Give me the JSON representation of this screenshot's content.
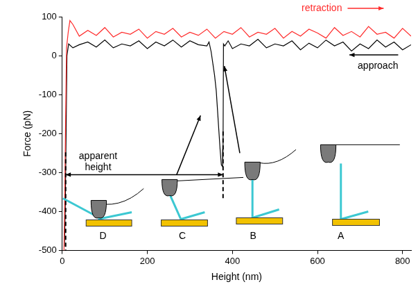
{
  "chart_data": {
    "type": "line",
    "x_label": "Height (nm)",
    "y_label": "Force (pN)",
    "xlim": [
      0,
      820
    ],
    "xticks": [
      0,
      200,
      400,
      600,
      800
    ],
    "ylim": [
      -500,
      100
    ],
    "yticks": [
      -500,
      -400,
      -300,
      -200,
      -100,
      0,
      100
    ],
    "grid": false,
    "series": [
      {
        "name": "retraction",
        "color": "#ff2a2a",
        "x": [
          820,
          800,
          780,
          760,
          740,
          720,
          700,
          680,
          660,
          640,
          620,
          600,
          580,
          560,
          540,
          520,
          500,
          480,
          460,
          440,
          420,
          400,
          380,
          360,
          340,
          320,
          300,
          280,
          260,
          240,
          220,
          200,
          180,
          160,
          140,
          120,
          100,
          80,
          60,
          40,
          25,
          18,
          14,
          10,
          8,
          6,
          4
        ],
        "values": [
          50,
          70,
          45,
          60,
          55,
          75,
          48,
          62,
          52,
          72,
          45,
          58,
          68,
          50,
          62,
          45,
          70,
          55,
          60,
          48,
          72,
          55,
          62,
          45,
          68,
          52,
          60,
          48,
          70,
          55,
          62,
          45,
          68,
          55,
          60,
          48,
          72,
          52,
          65,
          50,
          80,
          90,
          60,
          20,
          -150,
          -350,
          -500
        ]
      },
      {
        "name": "approach",
        "color": "#000000",
        "x": [
          820,
          800,
          780,
          760,
          740,
          720,
          700,
          680,
          660,
          640,
          620,
          600,
          580,
          560,
          540,
          520,
          500,
          480,
          460,
          440,
          420,
          400,
          390,
          382,
          379,
          378,
          377,
          374,
          371,
          368,
          365,
          362,
          358,
          354,
          350,
          345,
          340,
          320,
          300,
          280,
          260,
          240,
          220,
          200,
          180,
          160,
          140,
          120,
          100,
          80,
          60,
          40,
          25,
          15,
          11,
          9,
          7,
          5
        ],
        "values": [
          28,
          15,
          35,
          22,
          40,
          18,
          30,
          12,
          35,
          25,
          40,
          20,
          32,
          15,
          38,
          25,
          30,
          20,
          42,
          25,
          30,
          18,
          38,
          25,
          30,
          -240,
          -285,
          -280,
          -240,
          -190,
          -140,
          -90,
          -50,
          -20,
          10,
          35,
          25,
          28,
          38,
          22,
          40,
          25,
          35,
          18,
          38,
          25,
          30,
          20,
          40,
          22,
          35,
          28,
          20,
          30,
          0,
          -200,
          -400,
          -490
        ]
      }
    ],
    "annotations": [
      {
        "text": "apparent height",
        "from": 8,
        "to": 378
      }
    ],
    "schematic_labels": [
      "D",
      "C",
      "B",
      "A"
    ]
  }
}
